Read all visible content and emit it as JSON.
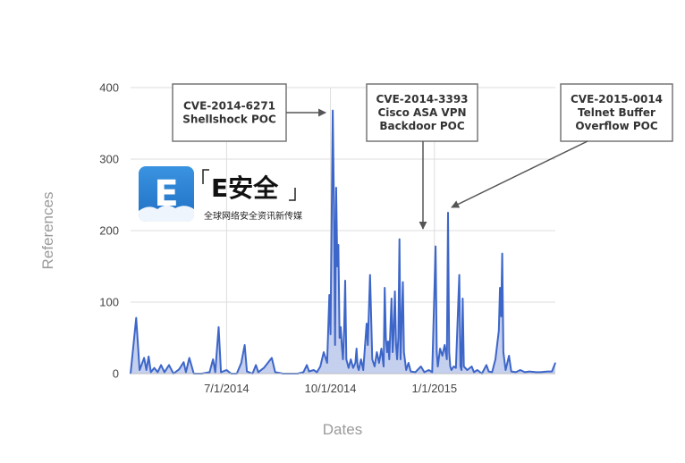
{
  "chart_data": {
    "type": "area",
    "xlabel": "Dates",
    "ylabel": "References",
    "ylim": [
      0,
      400
    ],
    "xlim": [
      "2014-04-07",
      "2015-04-18"
    ],
    "y_ticks": [
      0,
      100,
      200,
      300,
      400
    ],
    "x_ticks": [
      {
        "date": "2014-07-01",
        "label": "7/1/2014"
      },
      {
        "date": "2014-10-01",
        "label": "10/1/2014"
      },
      {
        "date": "2015-01-01",
        "label": "1/1/2015"
      }
    ],
    "grid": true,
    "legend": "none",
    "series": [
      {
        "color": "#3d66c9",
        "fill": "#c5cfee",
        "points": [
          [
            "2014-04-07",
            0
          ],
          [
            "2014-04-12",
            78
          ],
          [
            "2014-04-15",
            5
          ],
          [
            "2014-04-19",
            22
          ],
          [
            "2014-04-21",
            5
          ],
          [
            "2014-04-23",
            24
          ],
          [
            "2014-04-25",
            2
          ],
          [
            "2014-04-28",
            8
          ],
          [
            "2014-05-01",
            2
          ],
          [
            "2014-05-04",
            12
          ],
          [
            "2014-05-07",
            2
          ],
          [
            "2014-05-11",
            12
          ],
          [
            "2014-05-15",
            0
          ],
          [
            "2014-05-20",
            6
          ],
          [
            "2014-05-24",
            16
          ],
          [
            "2014-05-26",
            2
          ],
          [
            "2014-05-29",
            22
          ],
          [
            "2014-06-02",
            0
          ],
          [
            "2014-06-09",
            0
          ],
          [
            "2014-06-16",
            2
          ],
          [
            "2014-06-19",
            20
          ],
          [
            "2014-06-21",
            2
          ],
          [
            "2014-06-24",
            65
          ],
          [
            "2014-06-26",
            2
          ],
          [
            "2014-07-01",
            5
          ],
          [
            "2014-07-05",
            0
          ],
          [
            "2014-07-10",
            0
          ],
          [
            "2014-07-14",
            15
          ],
          [
            "2014-07-17",
            40
          ],
          [
            "2014-07-19",
            3
          ],
          [
            "2014-07-24",
            0
          ],
          [
            "2014-07-27",
            12
          ],
          [
            "2014-07-29",
            2
          ],
          [
            "2014-08-03",
            8
          ],
          [
            "2014-08-10",
            22
          ],
          [
            "2014-08-13",
            2
          ],
          [
            "2014-08-20",
            0
          ],
          [
            "2014-09-02",
            0
          ],
          [
            "2014-09-07",
            2
          ],
          [
            "2014-09-10",
            12
          ],
          [
            "2014-09-12",
            3
          ],
          [
            "2014-09-16",
            5
          ],
          [
            "2014-09-19",
            2
          ],
          [
            "2014-09-22",
            10
          ],
          [
            "2014-09-25",
            30
          ],
          [
            "2014-09-28",
            15
          ],
          [
            "2014-09-30",
            110
          ],
          [
            "2014-10-01",
            55
          ],
          [
            "2014-10-03",
            368
          ],
          [
            "2014-10-04",
            240
          ],
          [
            "2014-10-05",
            40
          ],
          [
            "2014-10-06",
            260
          ],
          [
            "2014-10-07",
            150
          ],
          [
            "2014-10-08",
            180
          ],
          [
            "2014-10-09",
            50
          ],
          [
            "2014-10-10",
            65
          ],
          [
            "2014-10-11",
            40
          ],
          [
            "2014-10-12",
            20
          ],
          [
            "2014-10-13",
            60
          ],
          [
            "2014-10-14",
            130
          ],
          [
            "2014-10-15",
            20
          ],
          [
            "2014-10-17",
            8
          ],
          [
            "2014-10-19",
            20
          ],
          [
            "2014-10-21",
            8
          ],
          [
            "2014-10-23",
            15
          ],
          [
            "2014-10-24",
            35
          ],
          [
            "2014-10-25",
            10
          ],
          [
            "2014-10-26",
            5
          ],
          [
            "2014-10-28",
            20
          ],
          [
            "2014-10-30",
            5
          ],
          [
            "2014-11-02",
            70
          ],
          [
            "2014-11-03",
            40
          ],
          [
            "2014-11-05",
            138
          ],
          [
            "2014-11-07",
            20
          ],
          [
            "2014-11-09",
            10
          ],
          [
            "2014-11-11",
            30
          ],
          [
            "2014-11-13",
            15
          ],
          [
            "2014-11-15",
            35
          ],
          [
            "2014-11-17",
            10
          ],
          [
            "2014-11-18",
            120
          ],
          [
            "2014-11-19",
            50
          ],
          [
            "2014-11-20",
            30
          ],
          [
            "2014-11-21",
            45
          ],
          [
            "2014-11-22",
            20
          ],
          [
            "2014-11-24",
            105
          ],
          [
            "2014-11-25",
            30
          ],
          [
            "2014-11-26",
            60
          ],
          [
            "2014-11-27",
            115
          ],
          [
            "2014-11-28",
            40
          ],
          [
            "2014-11-29",
            20
          ],
          [
            "2014-11-30",
            50
          ],
          [
            "2014-12-01",
            188
          ],
          [
            "2014-12-02",
            20
          ],
          [
            "2014-12-04",
            128
          ],
          [
            "2014-12-05",
            30
          ],
          [
            "2014-12-07",
            5
          ],
          [
            "2014-12-09",
            15
          ],
          [
            "2014-12-11",
            3
          ],
          [
            "2014-12-15",
            2
          ],
          [
            "2014-12-20",
            10
          ],
          [
            "2014-12-23",
            2
          ],
          [
            "2014-12-27",
            5
          ],
          [
            "2014-12-30",
            2
          ],
          [
            "2015-01-02",
            178
          ],
          [
            "2015-01-03",
            30
          ],
          [
            "2015-01-04",
            10
          ],
          [
            "2015-01-06",
            35
          ],
          [
            "2015-01-08",
            25
          ],
          [
            "2015-01-10",
            40
          ],
          [
            "2015-01-12",
            20
          ],
          [
            "2015-01-13",
            225
          ],
          [
            "2015-01-14",
            30
          ],
          [
            "2015-01-15",
            10
          ],
          [
            "2015-01-16",
            5
          ],
          [
            "2015-01-18",
            10
          ],
          [
            "2015-01-20",
            8
          ],
          [
            "2015-01-23",
            138
          ],
          [
            "2015-01-24",
            10
          ],
          [
            "2015-01-25",
            5
          ],
          [
            "2015-01-26",
            105
          ],
          [
            "2015-01-27",
            10
          ],
          [
            "2015-01-30",
            5
          ],
          [
            "2015-02-03",
            10
          ],
          [
            "2015-02-05",
            2
          ],
          [
            "2015-02-08",
            5
          ],
          [
            "2015-02-12",
            0
          ],
          [
            "2015-02-16",
            12
          ],
          [
            "2015-02-18",
            3
          ],
          [
            "2015-02-21",
            2
          ],
          [
            "2015-02-24",
            20
          ],
          [
            "2015-02-27",
            60
          ],
          [
            "2015-02-28",
            120
          ],
          [
            "2015-03-01",
            80
          ],
          [
            "2015-03-02",
            168
          ],
          [
            "2015-03-03",
            30
          ],
          [
            "2015-03-05",
            5
          ],
          [
            "2015-03-08",
            25
          ],
          [
            "2015-03-10",
            3
          ],
          [
            "2015-03-14",
            2
          ],
          [
            "2015-03-18",
            5
          ],
          [
            "2015-03-22",
            2
          ],
          [
            "2015-03-26",
            3
          ],
          [
            "2015-04-01",
            2
          ],
          [
            "2015-04-05",
            2
          ],
          [
            "2015-04-11",
            3
          ],
          [
            "2015-04-15",
            3
          ],
          [
            "2015-04-18",
            15
          ]
        ]
      }
    ],
    "annotations": [
      {
        "lines": [
          "CVE-2014-6271",
          "Shellshock POC"
        ],
        "target_date": "2014-10-03",
        "target_value": 368
      },
      {
        "lines": [
          "CVE-2014-3393",
          "Cisco ASA VPN",
          "Backdoor POC"
        ],
        "target_date": "2014-12-01",
        "target_value": 190
      },
      {
        "lines": [
          "CVE-2015-0014",
          "Telnet Buffer",
          "Overflow POC"
        ],
        "target_date": "2015-01-13",
        "target_value": 225
      }
    ]
  },
  "watermark": {
    "mark": "E",
    "name": "E安全",
    "tagline": "全球网络安全资讯新传媒",
    "color": "#2f86d8"
  }
}
